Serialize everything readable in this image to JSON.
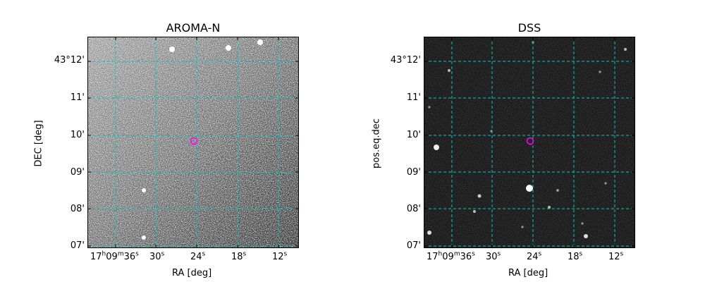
{
  "panels": [
    {
      "title": "AROMA-N",
      "xlabel": "RA [deg]",
      "ylabel": "DEC [deg]",
      "xticks": [
        "17h09m36s",
        "30s",
        "24s",
        "18s",
        "12s"
      ],
      "yticks": [
        "43°12'",
        "11'",
        "10'",
        "09'",
        "08'",
        "07'"
      ]
    },
    {
      "title": "DSS",
      "xlabel": "RA [deg]",
      "ylabel": "pos.eq.dec",
      "xticks": [
        "17h09m36s",
        "30s",
        "24s",
        "18s",
        "12s"
      ],
      "yticks": [
        "43°12'",
        "11'",
        "10'",
        "09'",
        "08'",
        "07'"
      ]
    }
  ],
  "colors": {
    "grid": "#00c8c8",
    "marker": "#ff00ff",
    "frame": "#000000"
  }
}
